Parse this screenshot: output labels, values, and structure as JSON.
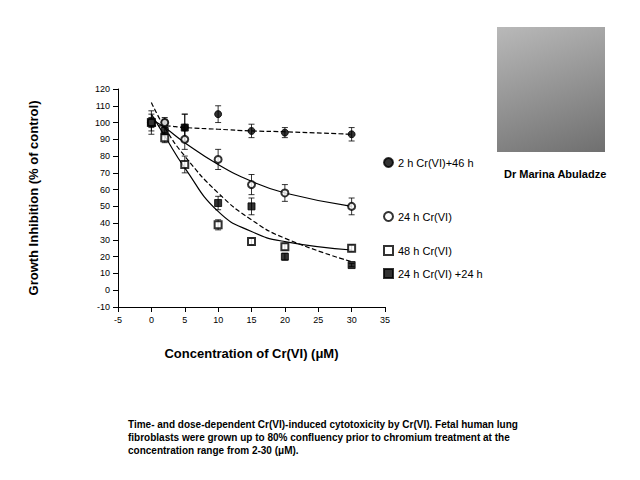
{
  "chart_data": {
    "type": "scatter",
    "x_label": "Concentration of Cr(VI) (μM)",
    "y_label": "Growth Inhibition (% of control)",
    "caption": "Time- and dose-dependent Cr(VI)-induced cytotoxicity by Cr(VI). Fetal human lung fibroblasts were grown up to 80% confluency prior to chromium treatment at the concentration range from 2-30 (μM).",
    "person": "Dr Marina Abuladze",
    "xlim": [
      -5,
      35
    ],
    "xticks": [
      -5,
      0,
      5,
      10,
      15,
      20,
      25,
      30,
      35
    ],
    "ylim": [
      -10,
      120
    ],
    "yticks": [
      -10,
      0,
      10,
      20,
      30,
      40,
      50,
      60,
      70,
      80,
      90,
      100,
      110,
      120
    ],
    "grid": false,
    "x": [
      0,
      2,
      5,
      10,
      15,
      20,
      30
    ],
    "series": [
      {
        "name": "2 h Cr(VI)+46 h",
        "color": "#000000",
        "marker": "circle",
        "line_style": "dashed",
        "values": [
          100,
          100,
          97,
          105,
          95,
          94,
          93
        ],
        "errors": [
          7,
          2,
          8,
          5,
          4,
          3,
          4
        ],
        "fit": [
          98,
          98,
          97,
          96,
          95,
          94.5,
          93
        ]
      },
      {
        "name": "24 h Cr(VI)",
        "color": "#000000",
        "marker": "open_circle",
        "line_style": "solid",
        "values": [
          100,
          100,
          90,
          78,
          63,
          58,
          50
        ],
        "errors": [
          5,
          3,
          6,
          6,
          6,
          5,
          5
        ],
        "fit": [
          102,
          97,
          88,
          75,
          65,
          58,
          50
        ]
      },
      {
        "name": "48 h Cr(VI)",
        "color": "#000000",
        "marker": "open_square",
        "line_style": "solid",
        "values": [
          100,
          91,
          75,
          39,
          29,
          26,
          25
        ],
        "errors": [
          3,
          3,
          5,
          3,
          2,
          2,
          2
        ],
        "fit": [
          105,
          92,
          73,
          47,
          35,
          29,
          24
        ]
      },
      {
        "name": "24 h Cr(VI) +24 h",
        "color": "#000000",
        "marker": "square",
        "line_style": "dashed",
        "values": [
          100,
          95,
          97,
          52,
          50,
          20,
          15
        ],
        "errors": [
          2,
          3,
          8,
          4,
          5,
          2,
          1
        ],
        "fit": [
          112,
          97,
          80,
          58,
          42,
          31,
          17
        ]
      }
    ]
  }
}
